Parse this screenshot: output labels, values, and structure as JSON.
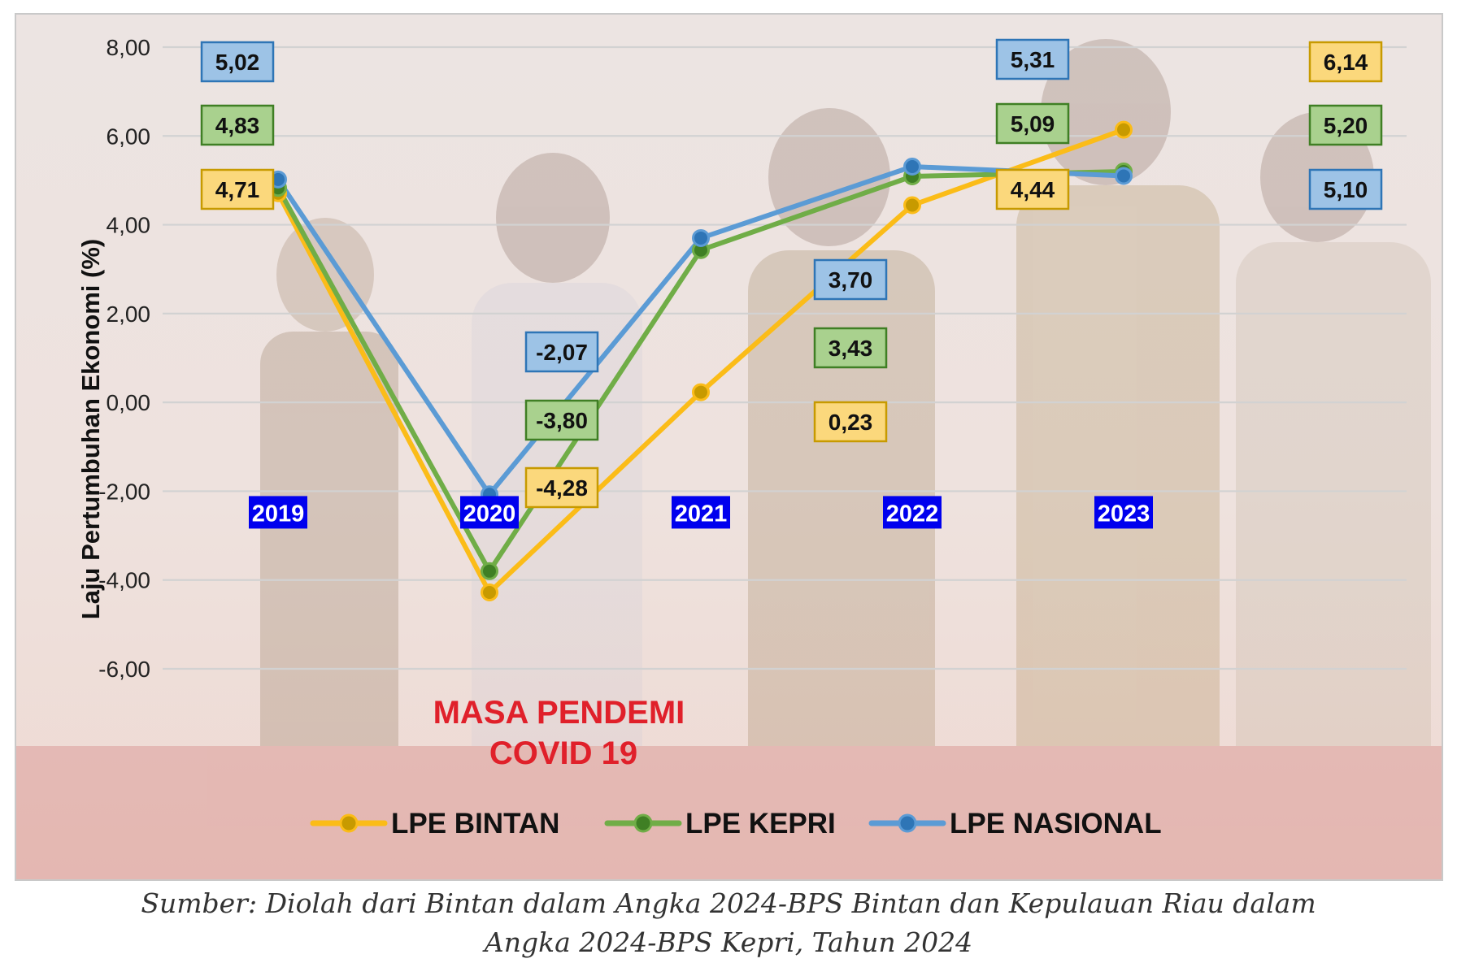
{
  "chart_data": {
    "type": "line",
    "ylabel": "Laju Pertumbuhan Ekonomi (%)",
    "ylim": [
      -6,
      8
    ],
    "yticks": [
      "8,00",
      "6,00",
      "4,00",
      "2,00",
      "0,00",
      "-2,00",
      "-4,00",
      "-6,00"
    ],
    "ytick_values": [
      8,
      6,
      4,
      2,
      0,
      -2,
      -4,
      -6
    ],
    "categories": [
      "2019",
      "2020",
      "2021",
      "2022",
      "2023"
    ],
    "grid": true,
    "legend_position": "bottom",
    "series": [
      {
        "name": "LPE BINTAN",
        "values": [
          4.71,
          -4.28,
          0.23,
          4.44,
          6.14
        ],
        "labels": [
          "4,71",
          "-4,28",
          "0,23",
          "4,44",
          "6,14"
        ],
        "color": "#fbbc18",
        "label_fill": "#fbd87c",
        "label_border": "#c79a00"
      },
      {
        "name": "LPE KEPRI",
        "values": [
          4.83,
          -3.8,
          3.43,
          5.09,
          5.2
        ],
        "labels": [
          "4,83",
          "-3,80",
          "3,43",
          "5,09",
          "5,20"
        ],
        "color": "#70ad47",
        "label_fill": "#a9d18e",
        "label_border": "#3f7f24"
      },
      {
        "name": "LPE NASIONAL",
        "values": [
          5.02,
          -2.07,
          3.7,
          5.31,
          5.1
        ],
        "labels": [
          "5,02",
          "-2,07",
          "3,70",
          "5,31",
          "5,10"
        ],
        "color": "#5b9bd5",
        "label_fill": "#9dc3e6",
        "label_border": "#2e75b6"
      }
    ],
    "annotation": {
      "lines": [
        "MASA PENDEMI",
        "COVID 19"
      ],
      "color": "#e0202a"
    },
    "category_label_style": {
      "fill": "#0000ee",
      "text": "#ffffff"
    }
  },
  "source_note": {
    "line1": "Sumber: Diolah dari Bintan dalam Angka 2024-BPS Bintan dan Kepulauan Riau dalam",
    "line2": "Angka 2024-BPS Kepri, Tahun 2024"
  }
}
